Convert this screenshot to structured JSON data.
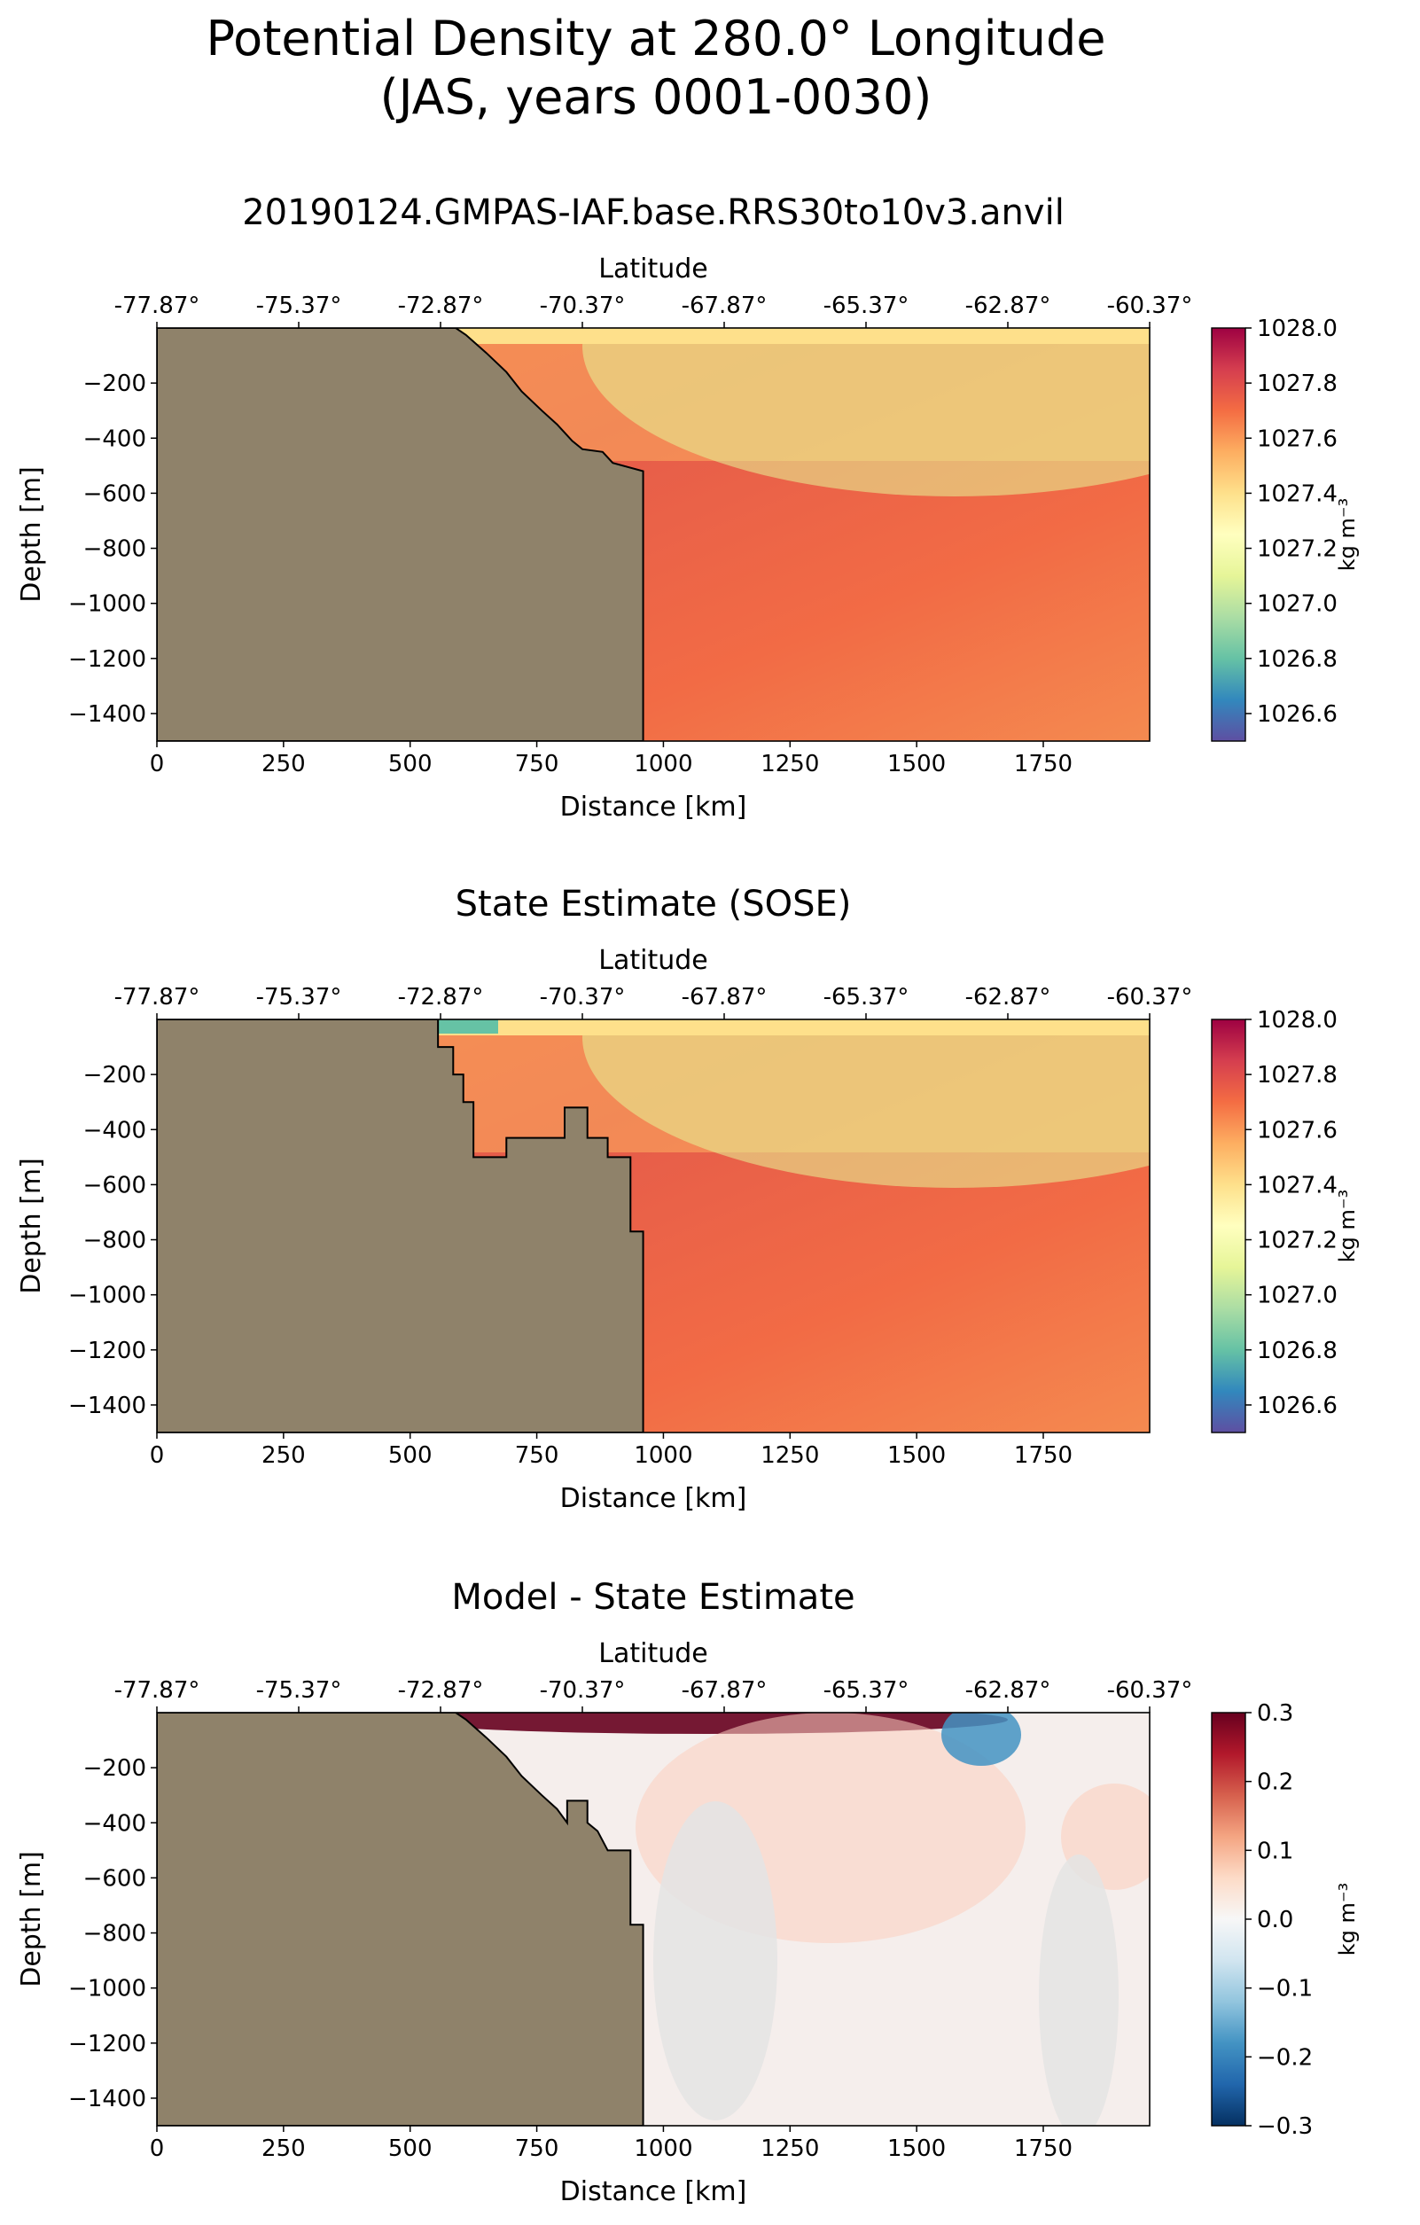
{
  "suptitle": {
    "line1": "Potential Density at 280.0° Longitude",
    "line2": "(JAS, years 0001-0030)"
  },
  "chart_data": [
    {
      "type": "heatmap",
      "title": "20190124.GMPAS-IAF.base.RRS30to10v3.anvil",
      "xlabel": "Distance [km]",
      "ylabel": "Depth [m]",
      "top_xlabel": "Latitude",
      "xlim": [
        0,
        1960
      ],
      "ylim": [
        -1500,
        0
      ],
      "x_ticks": [
        0,
        250,
        500,
        750,
        1000,
        1250,
        1500,
        1750
      ],
      "y_ticks": [
        -200,
        -400,
        -600,
        -800,
        -1000,
        -1200,
        -1400
      ],
      "top_ticks": [
        "-77.87°",
        "-75.37°",
        "-72.87°",
        "-70.37°",
        "-67.87°",
        "-65.37°",
        "-62.87°",
        "-60.37°"
      ],
      "colorbar": {
        "label": "kg m⁻³",
        "range": [
          1026.5,
          1028.0
        ],
        "ticks": [
          "1028.0",
          "1027.8",
          "1027.6",
          "1027.4",
          "1027.2",
          "1027.0",
          "1026.8",
          "1026.6"
        ],
        "colormap": "Spectral_r"
      },
      "land_color": "#8f826a",
      "bathymetry": [
        [
          0,
          0
        ],
        [
          590,
          0
        ],
        [
          610,
          -25
        ],
        [
          650,
          -90
        ],
        [
          690,
          -160
        ],
        [
          720,
          -230
        ],
        [
          760,
          -300
        ],
        [
          790,
          -350
        ],
        [
          820,
          -410
        ],
        [
          840,
          -440
        ],
        [
          880,
          -450
        ],
        [
          900,
          -490
        ],
        [
          960,
          -520
        ],
        [
          960,
          -1500
        ],
        [
          0,
          -1500
        ]
      ]
    },
    {
      "type": "heatmap",
      "title": "State Estimate (SOSE)",
      "xlabel": "Distance [km]",
      "ylabel": "Depth [m]",
      "top_xlabel": "Latitude",
      "xlim": [
        0,
        1960
      ],
      "ylim": [
        -1500,
        0
      ],
      "x_ticks": [
        0,
        250,
        500,
        750,
        1000,
        1250,
        1500,
        1750
      ],
      "y_ticks": [
        -200,
        -400,
        -600,
        -800,
        -1000,
        -1200,
        -1400
      ],
      "top_ticks": [
        "-77.87°",
        "-75.37°",
        "-72.87°",
        "-70.37°",
        "-67.87°",
        "-65.37°",
        "-62.87°",
        "-60.37°"
      ],
      "colorbar": {
        "label": "kg m⁻³",
        "range": [
          1026.5,
          1028.0
        ],
        "ticks": [
          "1028.0",
          "1027.8",
          "1027.6",
          "1027.4",
          "1027.2",
          "1027.0",
          "1026.8",
          "1026.6"
        ],
        "colormap": "Spectral_r"
      },
      "land_color": "#8f826a",
      "bathymetry": [
        [
          0,
          0
        ],
        [
          555,
          0
        ],
        [
          555,
          -100
        ],
        [
          585,
          -100
        ],
        [
          585,
          -200
        ],
        [
          605,
          -200
        ],
        [
          605,
          -300
        ],
        [
          625,
          -300
        ],
        [
          625,
          -500
        ],
        [
          690,
          -500
        ],
        [
          690,
          -430
        ],
        [
          805,
          -430
        ],
        [
          805,
          -320
        ],
        [
          850,
          -320
        ],
        [
          850,
          -430
        ],
        [
          890,
          -430
        ],
        [
          890,
          -500
        ],
        [
          935,
          -500
        ],
        [
          935,
          -770
        ],
        [
          960,
          -770
        ],
        [
          960,
          -1500
        ],
        [
          0,
          -1500
        ]
      ]
    },
    {
      "type": "heatmap",
      "title": "Model - State Estimate",
      "xlabel": "Distance [km]",
      "ylabel": "Depth [m]",
      "top_xlabel": "Latitude",
      "xlim": [
        0,
        1960
      ],
      "ylim": [
        -1500,
        0
      ],
      "x_ticks": [
        0,
        250,
        500,
        750,
        1000,
        1250,
        1500,
        1750
      ],
      "y_ticks": [
        -200,
        -400,
        -600,
        -800,
        -1000,
        -1200,
        -1400
      ],
      "top_ticks": [
        "-77.87°",
        "-75.37°",
        "-72.87°",
        "-70.37°",
        "-67.87°",
        "-65.37°",
        "-62.87°",
        "-60.37°"
      ],
      "colorbar": {
        "label": "kg m⁻³",
        "range": [
          -0.3,
          0.3
        ],
        "ticks": [
          "0.3",
          "0.2",
          "0.1",
          "0.0",
          "−0.1",
          "−0.2",
          "−0.3"
        ],
        "colormap": "RdBu_r"
      },
      "land_color": "#8f826a",
      "bathymetry": [
        [
          0,
          0
        ],
        [
          590,
          0
        ],
        [
          610,
          -25
        ],
        [
          650,
          -90
        ],
        [
          690,
          -160
        ],
        [
          720,
          -230
        ],
        [
          760,
          -300
        ],
        [
          790,
          -350
        ],
        [
          810,
          -400
        ],
        [
          810,
          -320
        ],
        [
          850,
          -320
        ],
        [
          850,
          -400
        ],
        [
          870,
          -430
        ],
        [
          890,
          -500
        ],
        [
          935,
          -500
        ],
        [
          935,
          -770
        ],
        [
          960,
          -770
        ],
        [
          960,
          -1500
        ],
        [
          0,
          -1500
        ]
      ]
    }
  ]
}
